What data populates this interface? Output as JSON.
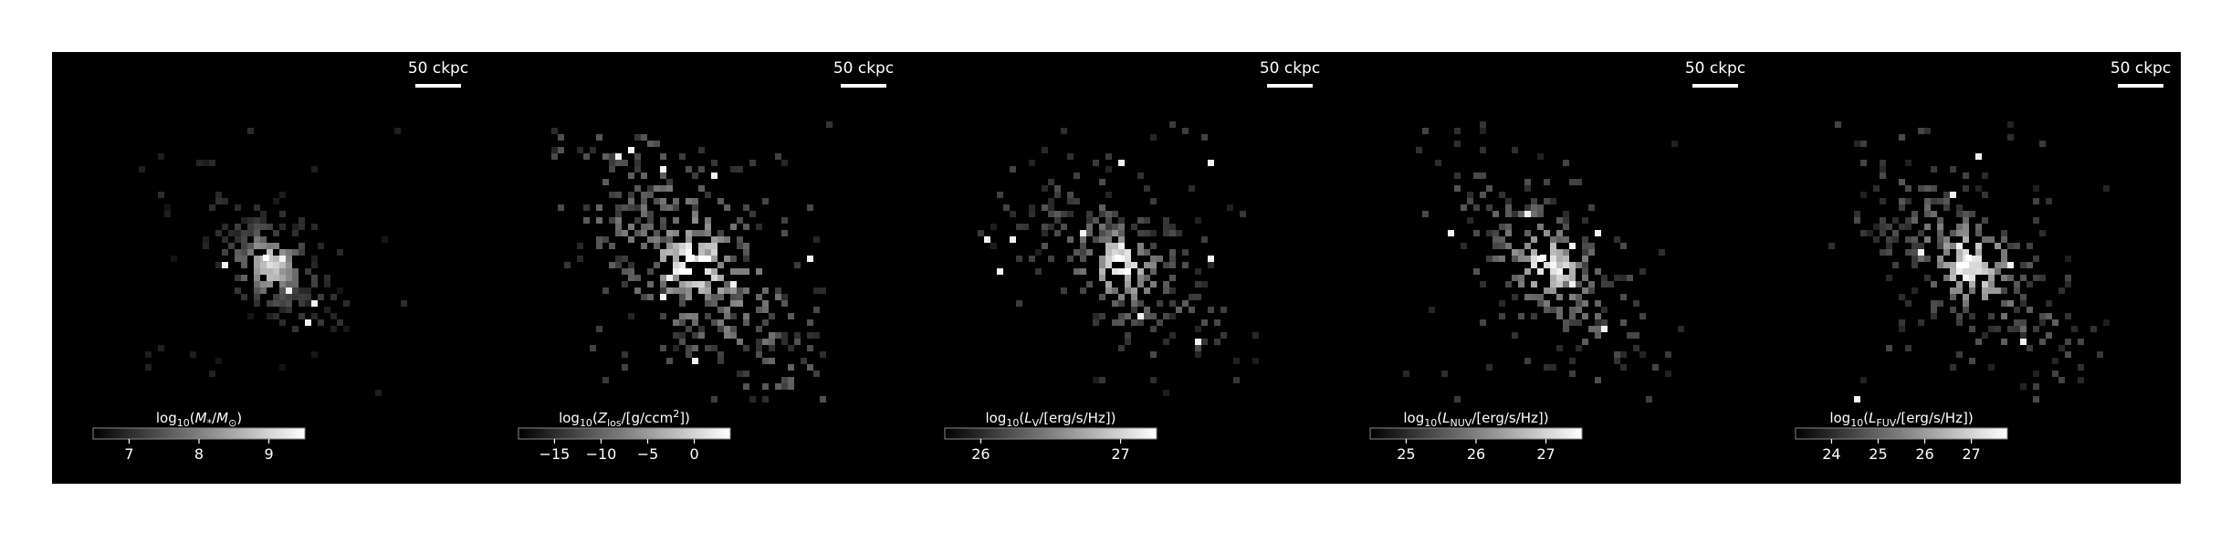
{
  "figure": {
    "background": "#000000",
    "colormap": "greys_r",
    "panels": [
      {
        "id": "stellar-mass",
        "scale_bar_label": "50 ckpc",
        "colorbar_label_parts": [
          "log",
          "10",
          "(",
          "M",
          "*",
          "/",
          "M",
          "⊙",
          ")"
        ],
        "colorbar_ticks": [
          "7",
          "8",
          "9"
        ],
        "spread": 0.55,
        "density": 0.9,
        "fill_level": 0.35
      },
      {
        "id": "metallicity",
        "scale_bar_label": "50 ckpc",
        "colorbar_label_parts": [
          "log",
          "10",
          "(",
          "Z",
          "los",
          "/[g/ccm",
          "2",
          "])"
        ],
        "colorbar_ticks": [
          "−15",
          "−10",
          "−5",
          "0"
        ],
        "spread": 1.0,
        "density": 0.62,
        "fill_level": 0.65
      },
      {
        "id": "luminosity-v",
        "scale_bar_label": "50 ckpc",
        "colorbar_label_parts": [
          "log",
          "10",
          "(",
          "L",
          "V",
          "/[erg/s/Hz])"
        ],
        "colorbar_ticks": [
          "26",
          "27"
        ],
        "spread": 0.85,
        "density": 0.58,
        "fill_level": 0.5
      },
      {
        "id": "luminosity-nuv",
        "scale_bar_label": "50 ckpc",
        "colorbar_label_parts": [
          "log",
          "10",
          "(",
          "L",
          "NUV",
          "/[erg/s/Hz])"
        ],
        "colorbar_ticks": [
          "25",
          "26",
          "27"
        ],
        "spread": 0.88,
        "density": 0.58,
        "fill_level": 0.55
      },
      {
        "id": "luminosity-fuv",
        "scale_bar_label": "50 ckpc",
        "colorbar_label_parts": [
          "log",
          "10",
          "(",
          "L",
          "FUV",
          "/[erg/s/Hz])"
        ],
        "colorbar_ticks": [
          "24",
          "25",
          "26",
          "27"
        ],
        "spread": 0.88,
        "density": 0.58,
        "fill_level": 0.55
      }
    ]
  }
}
